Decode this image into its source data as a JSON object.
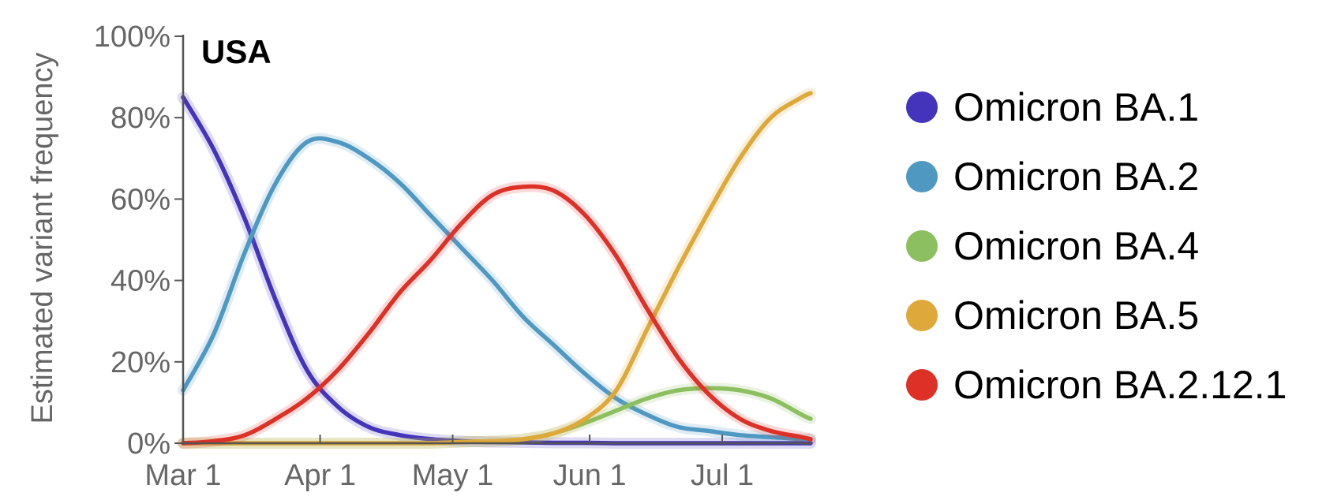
{
  "chart_data": {
    "type": "line",
    "title": "USA",
    "ylabel": "Estimated variant frequency",
    "xlabel": "",
    "x": [
      "2022-03-01",
      "2022-03-08",
      "2022-03-15",
      "2022-03-22",
      "2022-03-29",
      "2022-04-05",
      "2022-04-12",
      "2022-04-19",
      "2022-04-26",
      "2022-05-03",
      "2022-05-10",
      "2022-05-17",
      "2022-05-24",
      "2022-05-31",
      "2022-06-07",
      "2022-06-14",
      "2022-06-21",
      "2022-06-28",
      "2022-07-05",
      "2022-07-12",
      "2022-07-19",
      "2022-07-21"
    ],
    "xlim": [
      "2022-03-01",
      "2022-07-21"
    ],
    "xticks": [
      {
        "date": "2022-03-01",
        "label": "Mar 1"
      },
      {
        "date": "2022-04-01",
        "label": "Apr 1"
      },
      {
        "date": "2022-05-01",
        "label": "May 1"
      },
      {
        "date": "2022-06-01",
        "label": "Jun 1"
      },
      {
        "date": "2022-07-01",
        "label": "Jul 1"
      }
    ],
    "yticks": [
      {
        "value": 0,
        "label": "0%"
      },
      {
        "value": 20,
        "label": "20%"
      },
      {
        "value": 40,
        "label": "40%"
      },
      {
        "value": 60,
        "label": "60%"
      },
      {
        "value": 80,
        "label": "80%"
      },
      {
        "value": 100,
        "label": "100%"
      }
    ],
    "ylim": [
      0,
      100
    ],
    "grid": false,
    "legend_position": "right",
    "series": [
      {
        "name": "Omicron BA.1",
        "color": "#4433bb",
        "values": [
          85,
          72,
          55,
          35,
          18,
          9,
          4,
          2,
          1,
          0.5,
          0.3,
          0.2,
          0.1,
          0.1,
          0,
          0,
          0,
          0,
          0,
          0,
          0,
          0
        ]
      },
      {
        "name": "Omicron BA.2",
        "color": "#4f98c2",
        "values": [
          13,
          27,
          47,
          64,
          74,
          74,
          70,
          64,
          56,
          48,
          40,
          31,
          24,
          17,
          11,
          7,
          4,
          3,
          2,
          1.5,
          1,
          1
        ]
      },
      {
        "name": "Omicron BA.4",
        "color": "#8cbf5f",
        "values": [
          0,
          0,
          0,
          0,
          0,
          0,
          0,
          0,
          0,
          0.3,
          0.5,
          1,
          2.5,
          5,
          8,
          11,
          13,
          13.5,
          13,
          11,
          7,
          6
        ]
      },
      {
        "name": "Omicron BA.5",
        "color": "#dea93a",
        "values": [
          0,
          0,
          0,
          0,
          0,
          0,
          0,
          0,
          0,
          0.3,
          0.5,
          1,
          2.5,
          6,
          13,
          28,
          43,
          57,
          70,
          80,
          85,
          86
        ]
      },
      {
        "name": "Omicron BA.2.12.1",
        "color": "#dd3127",
        "values": [
          0,
          0.5,
          2,
          6,
          11,
          18,
          27,
          37,
          45,
          54,
          61,
          63,
          62,
          56,
          46,
          33,
          21,
          12,
          6,
          3,
          1.5,
          1
        ]
      }
    ]
  }
}
